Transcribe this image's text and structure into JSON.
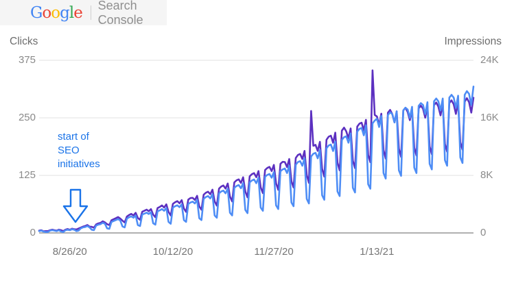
{
  "header": {
    "logo_letters": [
      {
        "ch": "G",
        "color": "#4285F4"
      },
      {
        "ch": "o",
        "color": "#EA4335"
      },
      {
        "ch": "o",
        "color": "#FBBC05"
      },
      {
        "ch": "g",
        "color": "#4285F4"
      },
      {
        "ch": "l",
        "color": "#34A853"
      },
      {
        "ch": "e",
        "color": "#EA4335"
      }
    ],
    "product": "Search Console"
  },
  "chart_data": {
    "type": "line",
    "left_axis": {
      "label": "Clicks",
      "max": 375,
      "ticks": [
        "375",
        "250",
        "125",
        "0"
      ]
    },
    "right_axis": {
      "label": "Impressions",
      "max": 24000,
      "ticks": [
        "24K",
        "16K",
        "8K",
        "0"
      ]
    },
    "x_ticks": [
      {
        "label": "8/26/20",
        "day": 14
      },
      {
        "label": "10/12/20",
        "day": 61
      },
      {
        "label": "11/27/20",
        "day": 107
      },
      {
        "label": "1/13/21",
        "day": 154
      }
    ],
    "grid_color": "#e8e8e8",
    "baseline_color": "#b0b0b0",
    "series": [
      {
        "name": "Clicks",
        "axis": "left",
        "color": "#4e8df5",
        "values": [
          4,
          5,
          3,
          2,
          2,
          5,
          6,
          5,
          4,
          6,
          3,
          2,
          6,
          7,
          6,
          8,
          7,
          4,
          5,
          10,
          12,
          13,
          15,
          12,
          7,
          6,
          16,
          18,
          19,
          22,
          20,
          10,
          9,
          24,
          26,
          28,
          30,
          27,
          14,
          12,
          31,
          34,
          36,
          33,
          38,
          17,
          15,
          40,
          42,
          44,
          41,
          45,
          21,
          18,
          47,
          49,
          52,
          48,
          54,
          24,
          20,
          55,
          58,
          60,
          56,
          62,
          28,
          24,
          63,
          66,
          68,
          64,
          72,
          32,
          28,
          74,
          78,
          80,
          75,
          84,
          38,
          33,
          86,
          90,
          92,
          86,
          96,
          44,
          38,
          98,
          102,
          104,
          97,
          108,
          50,
          43,
          110,
          114,
          116,
          108,
          120,
          55,
          48,
          122,
          126,
          128,
          120,
          132,
          60,
          52,
          134,
          138,
          140,
          130,
          146,
          66,
          58,
          148,
          154,
          156,
          146,
          162,
          74,
          64,
          166,
          172,
          174,
          162,
          180,
          82,
          72,
          184,
          190,
          192,
          178,
          198,
          90,
          80,
          202,
          208,
          210,
          196,
          216,
          98,
          88,
          220,
          226,
          228,
          212,
          234,
          106,
          96,
          238,
          244,
          248,
          230,
          254,
          130,
          118,
          256,
          262,
          258,
          240,
          264,
          136,
          124,
          266,
          272,
          268,
          250,
          274,
          142,
          130,
          276,
          282,
          278,
          258,
          284,
          150,
          138,
          286,
          292,
          286,
          266,
          292,
          158,
          146,
          294,
          300,
          294,
          272,
          298,
          164,
          152,
          300,
          308,
          302,
          278,
          318
        ]
      },
      {
        "name": "Impressions",
        "axis": "right",
        "color": "#5c30c0",
        "values": [
          310,
          380,
          230,
          260,
          260,
          380,
          460,
          380,
          310,
          460,
          380,
          260,
          460,
          540,
          440,
          590,
          510,
          490,
          610,
          740,
          880,
          960,
          1100,
          880,
          850,
          730,
          1180,
          1320,
          1400,
          1620,
          1470,
          1220,
          1090,
          1770,
          1910,
          2060,
          2210,
          1990,
          1700,
          1460,
          2280,
          2500,
          2650,
          2430,
          2800,
          2070,
          1820,
          2940,
          3090,
          3240,
          3020,
          3310,
          2550,
          2190,
          3460,
          3610,
          3830,
          3530,
          3970,
          2920,
          2430,
          4050,
          4270,
          4420,
          4120,
          4560,
          3400,
          2920,
          4640,
          4860,
          4880,
          4590,
          5160,
          3690,
          3230,
          5310,
          5590,
          5730,
          5380,
          6020,
          4380,
          3800,
          6160,
          6450,
          6600,
          6160,
          6880,
          5070,
          4380,
          7030,
          7310,
          7450,
          6950,
          7740,
          5760,
          4950,
          7880,
          8170,
          8310,
          7740,
          8600,
          6340,
          5530,
          8740,
          9030,
          9180,
          8600,
          9460,
          6910,
          5990,
          9610,
          9890,
          9860,
          9150,
          10280,
          7180,
          6310,
          10420,
          10840,
          10980,
          10280,
          11400,
          8050,
          6960,
          16960,
          12110,
          12250,
          11400,
          12670,
          8920,
          7830,
          12950,
          13380,
          13520,
          12530,
          13940,
          9790,
          8700,
          14220,
          14640,
          14110,
          13170,
          14520,
          10040,
          9010,
          14780,
          15190,
          15320,
          14250,
          15720,
          10850,
          9830,
          22600,
          16400,
          16190,
          15010,
          16580,
          11510,
          10320,
          16710,
          17100,
          16510,
          15360,
          16900,
          11710,
          10560,
          17020,
          17410,
          16810,
          15680,
          17180,
          11880,
          10760,
          17310,
          17690,
          17260,
          16020,
          17630,
          12010,
          10930,
          17760,
          18130,
          17570,
          16340,
          17940,
          12360,
          11300,
          18060,
          18430,
          17880,
          16540,
          18120,
          12610,
          11580,
          18240,
          18730,
          18170,
          16720,
          18800
        ]
      }
    ],
    "annotation": {
      "lines": [
        "start of",
        "SEO",
        "initiatives"
      ],
      "color": "#1a73e8"
    }
  }
}
